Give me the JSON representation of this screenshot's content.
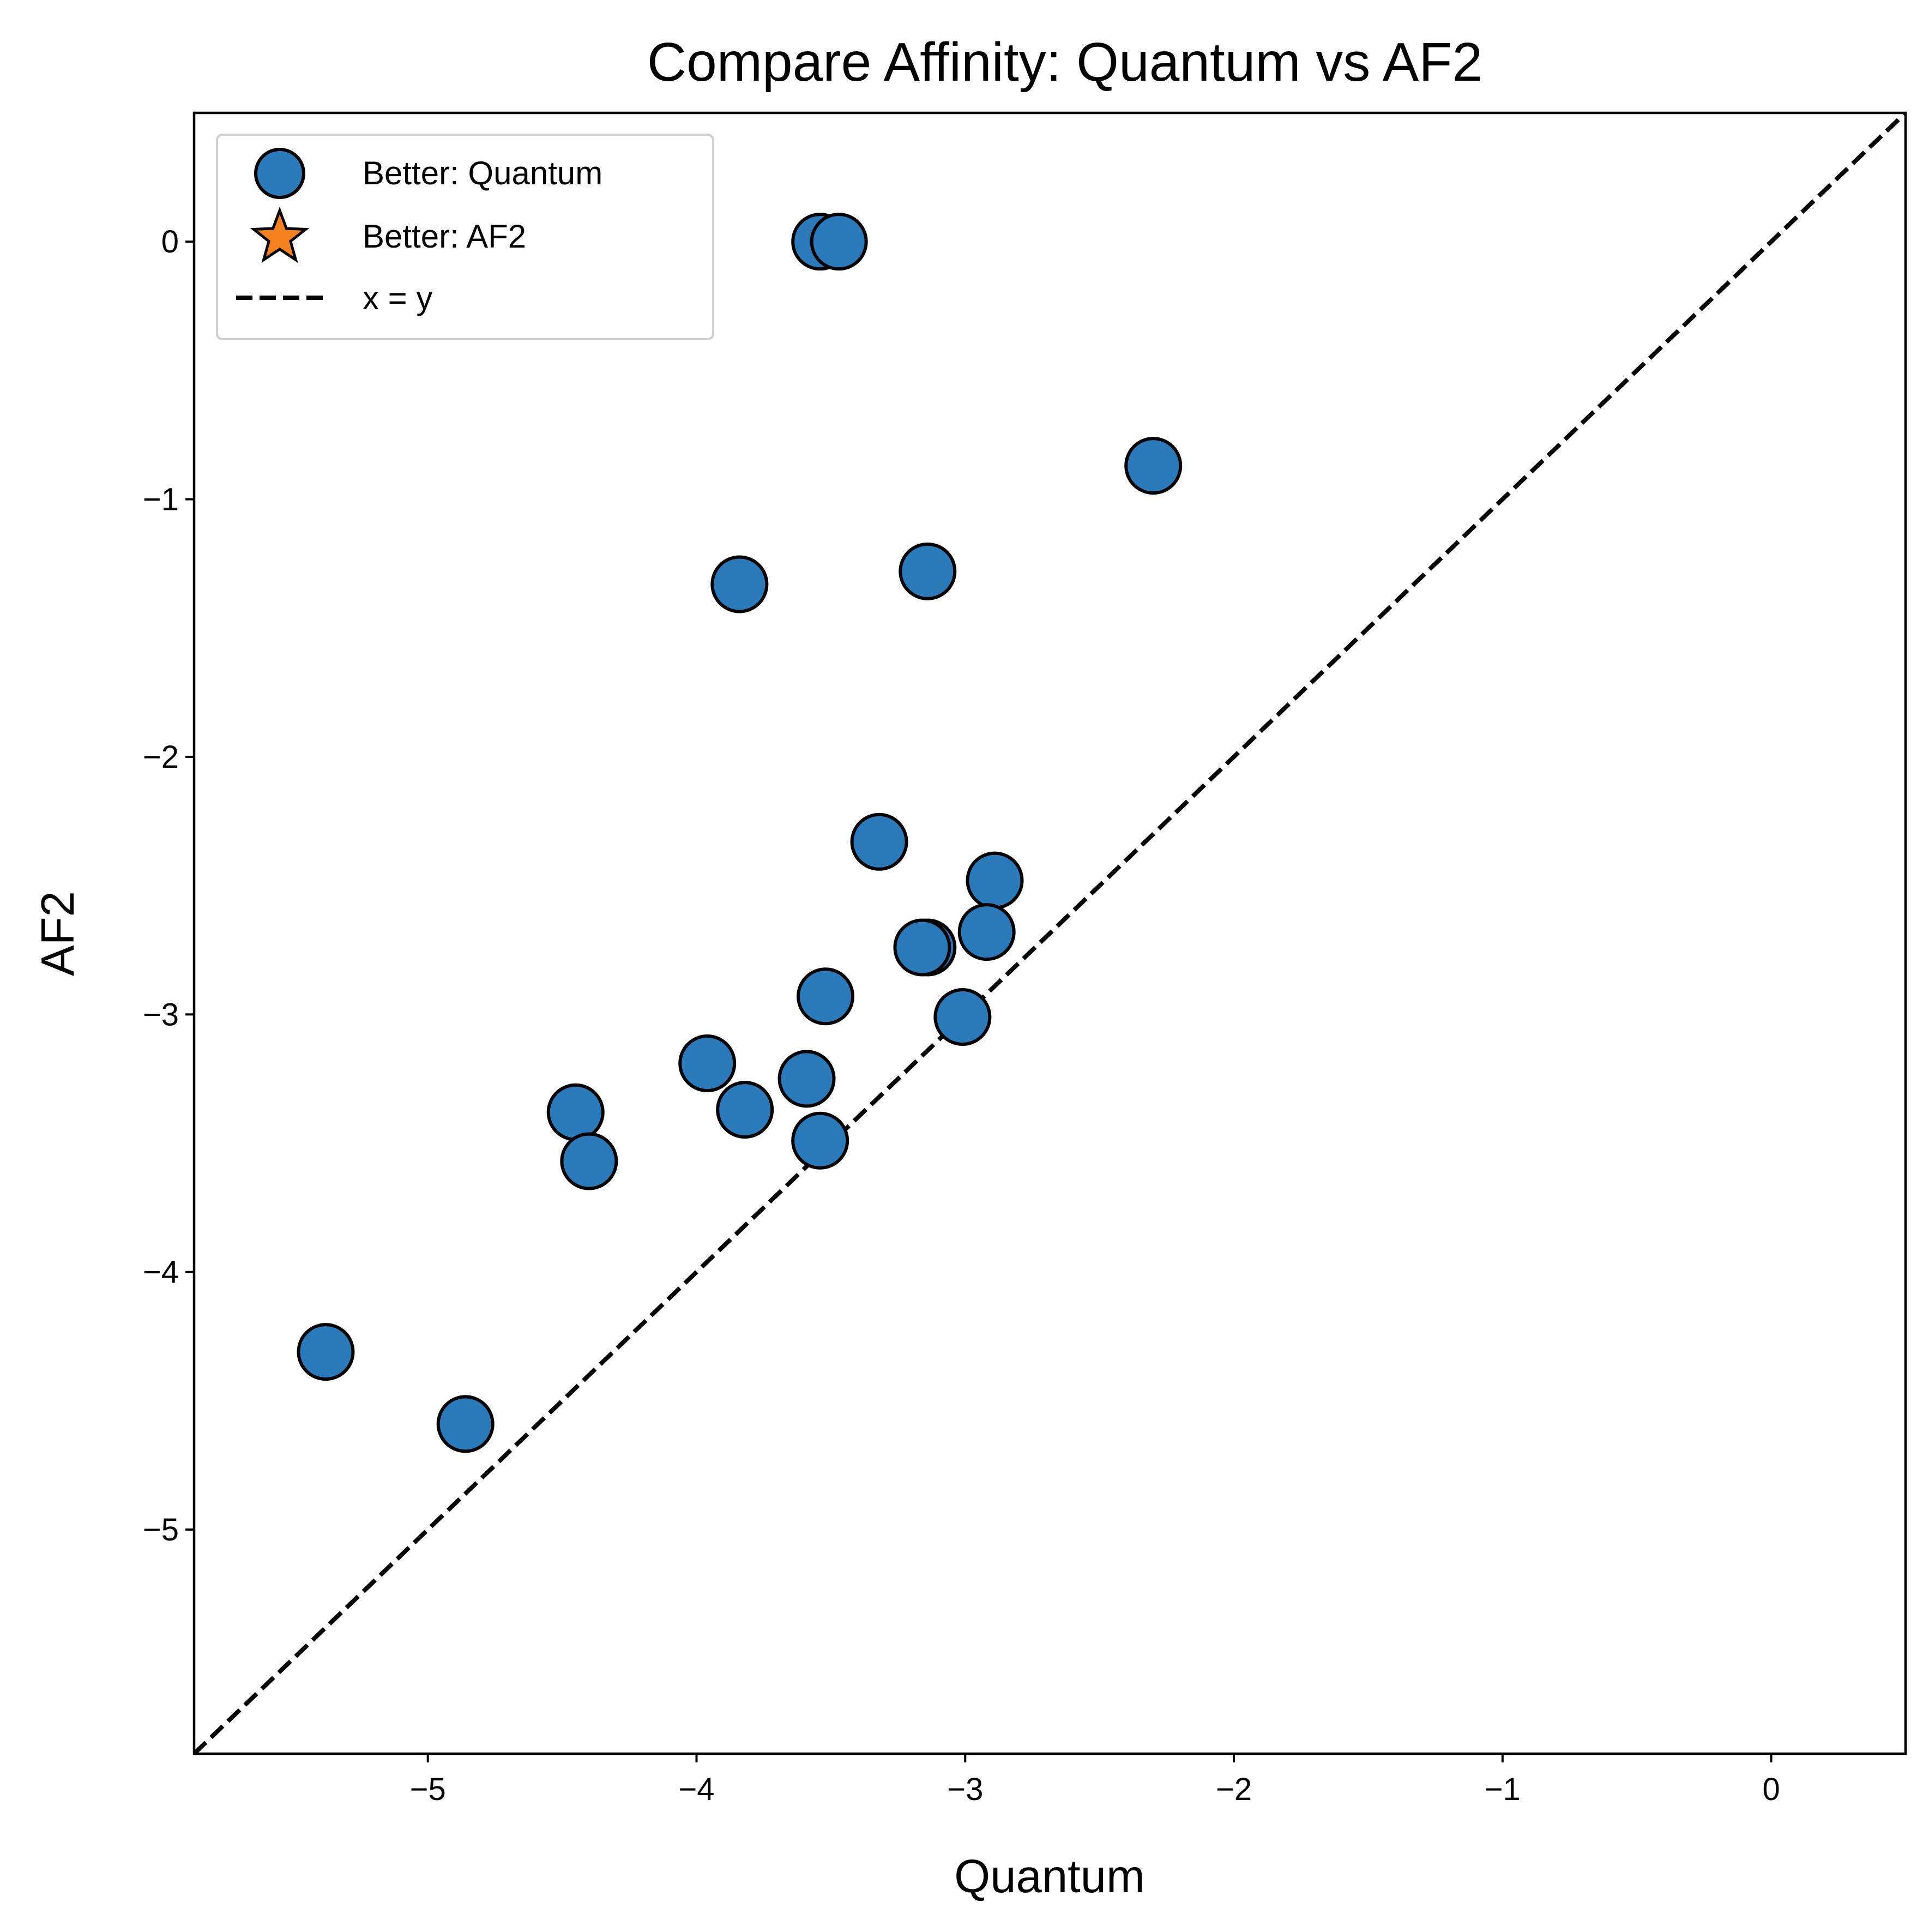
{
  "chart_data": {
    "type": "scatter",
    "title": "Compare Affinity: Quantum vs AF2",
    "xlabel": "Quantum",
    "ylabel": "AF2",
    "xlim": [
      -5.87,
      0.5
    ],
    "ylim": [
      -5.87,
      0.5
    ],
    "grid": false,
    "legend_position": "upper-left",
    "xticks": [
      {
        "value": -5,
        "label": "−5"
      },
      {
        "value": -4,
        "label": "−4"
      },
      {
        "value": -3,
        "label": "−3"
      },
      {
        "value": -2,
        "label": "−2"
      },
      {
        "value": -1,
        "label": "−1"
      },
      {
        "value": 0,
        "label": "0"
      }
    ],
    "yticks": [
      {
        "value": 0,
        "label": "0"
      },
      {
        "value": -1,
        "label": "−1"
      },
      {
        "value": -2,
        "label": "−2"
      },
      {
        "value": -3,
        "label": "−3"
      },
      {
        "value": -4,
        "label": "−4"
      },
      {
        "value": -5,
        "label": "−5"
      }
    ],
    "series": [
      {
        "name": "Better: Quantum",
        "marker": "circle",
        "color": "#2b7bba",
        "edge_color": "#000000",
        "points": [
          {
            "x": -3.54,
            "y": 0.0
          },
          {
            "x": -3.47,
            "y": 0.0
          },
          {
            "x": -2.3,
            "y": -0.87
          },
          {
            "x": -3.14,
            "y": -1.28
          },
          {
            "x": -3.84,
            "y": -1.33
          },
          {
            "x": -3.32,
            "y": -2.33
          },
          {
            "x": -2.89,
            "y": -2.48
          },
          {
            "x": -2.92,
            "y": -2.68
          },
          {
            "x": -3.14,
            "y": -2.74
          },
          {
            "x": -3.16,
            "y": -2.74
          },
          {
            "x": -3.52,
            "y": -2.93
          },
          {
            "x": -3.01,
            "y": -3.01
          },
          {
            "x": -3.96,
            "y": -3.19
          },
          {
            "x": -3.59,
            "y": -3.25
          },
          {
            "x": -3.82,
            "y": -3.37
          },
          {
            "x": -4.45,
            "y": -3.38
          },
          {
            "x": -3.54,
            "y": -3.49
          },
          {
            "x": -4.4,
            "y": -3.57
          },
          {
            "x": -5.38,
            "y": -4.31
          },
          {
            "x": -4.86,
            "y": -4.59
          }
        ]
      },
      {
        "name": "Better: AF2",
        "marker": "star",
        "color": "#f5821f",
        "edge_color": "#000000",
        "points": []
      },
      {
        "name": "x = y",
        "type": "line",
        "style": "dashed",
        "color": "#000000",
        "points": [
          {
            "x": -5.87,
            "y": -5.87
          },
          {
            "x": 0.5,
            "y": 0.5
          }
        ]
      }
    ]
  }
}
